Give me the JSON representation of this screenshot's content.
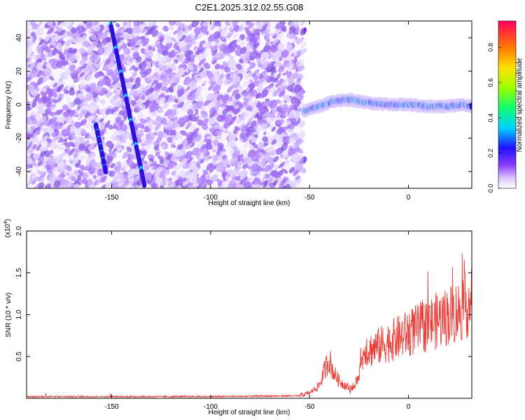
{
  "chart_data": [
    {
      "type": "heatmap",
      "title": "C2E1.2025.312.02.55.G08",
      "xlabel": "Height of straight line (km)",
      "ylabel": "Frequency (Hz)",
      "xlim": [
        -193,
        32
      ],
      "ylim": [
        -50,
        50
      ],
      "xticks": [
        -150,
        -100,
        -50,
        0
      ],
      "yticks": [
        -40,
        -20,
        0,
        20,
        40
      ],
      "colorbar": {
        "label": "Normalized spectral amplitude",
        "range": [
          0,
          0.95
        ],
        "ticks": [
          0.0,
          0.2,
          0.4,
          0.6,
          0.8
        ]
      },
      "features": {
        "scatter_region_km": [
          -193,
          -53
        ],
        "steep_track_1": {
          "x": [
            -150.5,
            -133.5
          ],
          "y": [
            48,
            -48
          ]
        },
        "steep_track_2": {
          "x": [
            -158,
            -153
          ],
          "y": [
            -12,
            -40
          ]
        },
        "signal_band": {
          "x": [
            -53,
            -45,
            -38,
            -30,
            -20,
            -10,
            0,
            10,
            20,
            28,
            32
          ],
          "y": [
            -4,
            -1,
            2,
            3,
            1,
            0,
            0,
            -1,
            -1,
            0,
            -1
          ]
        }
      }
    },
    {
      "type": "line",
      "xlabel": "Height of straight line (km)",
      "ylabel": "SNR (10 * v/v)",
      "yscale_label": "(x10",
      "yscale_exp": "4",
      "yscale_close": ")",
      "xlim": [
        -193,
        32
      ],
      "ylim": [
        0,
        2.0
      ],
      "xticks": [
        -150,
        -100,
        -50,
        0
      ],
      "yticks": [
        0.5,
        1.0,
        1.5,
        2.0
      ],
      "ytick_labels": [
        "0.5",
        "1.0",
        "1.5",
        "2.0"
      ],
      "series": [
        {
          "name": "SNR",
          "color": "#e8403a",
          "envelope": {
            "x": [
              -193,
              -100,
              -55,
              -50,
              -45,
              -42,
              -40,
              -38,
              -35,
              -32,
              -30,
              -27,
              -24,
              -22,
              -20,
              -15,
              -10,
              -5,
              0,
              5,
              10,
              15,
              20,
              25,
              28,
              30,
              32
            ],
            "y": [
              0.02,
              0.02,
              0.03,
              0.06,
              0.15,
              0.35,
              0.45,
              0.3,
              0.2,
              0.15,
              0.12,
              0.15,
              0.35,
              0.6,
              0.55,
              0.6,
              0.65,
              0.7,
              0.75,
              0.8,
              0.85,
              0.9,
              0.95,
              1.0,
              1.05,
              1.1,
              1.1
            ]
          }
        }
      ]
    }
  ]
}
